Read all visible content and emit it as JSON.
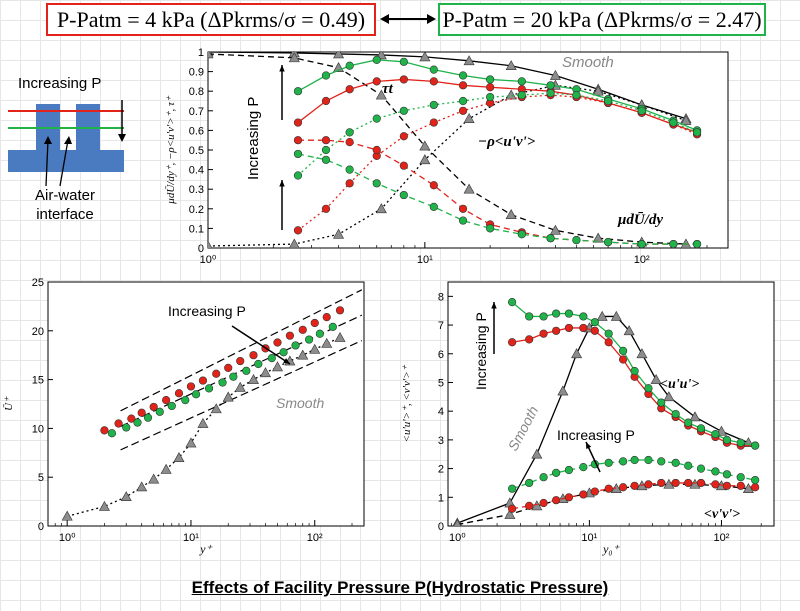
{
  "banners": {
    "left": {
      "label": "P-Patm = 4 kPa (ΔPkrms/σ = 0.49)",
      "color": "#e2231a"
    },
    "right": {
      "label": "P-Patm = 20 kPa (ΔPkrms/σ = 2.47)",
      "color": "#1fb34a"
    }
  },
  "inset": {
    "label_increasing": "Increasing P",
    "label_interface": "Air-water interface",
    "water_color": "#4a7abf"
  },
  "caption": "Effects of Facility Pressure P(Hydrostatic Pressure)",
  "chart_data": [
    {
      "id": "stress",
      "type": "line",
      "xscale": "log",
      "xlim": [
        1,
        250
      ],
      "ylim": [
        0,
        1
      ],
      "xticks": [
        1,
        10,
        100
      ],
      "xtick_labels": [
        "10⁰",
        "10¹",
        "10²"
      ],
      "yticks": [
        0,
        0.1,
        0.2,
        0.3,
        0.4,
        0.5,
        0.6,
        0.7,
        0.8,
        0.9,
        1
      ],
      "ylabel": "μdŪ/dy⁺, −ρ<u'v'>⁺, τ⁺",
      "annotations": [
        "Smooth",
        "τt",
        "−ρ<u'v'>",
        "μdŪ/dy",
        "Increasing P"
      ],
      "series": [
        {
          "name": "Smooth τt",
          "marker": "triangle",
          "color": "#8c8c8c",
          "dash": "solid",
          "x": [
            1,
            2.5,
            4,
            6.3,
            10,
            16,
            25,
            40,
            63,
            100,
            160
          ],
          "y": [
            1,
            0.995,
            0.99,
            0.985,
            0.975,
            0.955,
            0.93,
            0.88,
            0.81,
            0.73,
            0.66
          ]
        },
        {
          "name": "Smooth −ρ<u'v'>",
          "marker": "triangle",
          "color": "#8c8c8c",
          "dash": "dotted",
          "x": [
            1,
            2.5,
            4,
            6.3,
            10,
            16,
            25,
            40,
            63,
            100,
            160
          ],
          "y": [
            0.01,
            0.02,
            0.07,
            0.2,
            0.45,
            0.66,
            0.78,
            0.83,
            0.8,
            0.73,
            0.65
          ]
        },
        {
          "name": "Smooth μdU/dy",
          "marker": "triangle",
          "color": "#8c8c8c",
          "dash": "dashed",
          "x": [
            1,
            2.5,
            4,
            6.3,
            10,
            16,
            25,
            40,
            63,
            100,
            160
          ],
          "y": [
            0.99,
            0.97,
            0.92,
            0.78,
            0.52,
            0.3,
            0.17,
            0.09,
            0.05,
            0.03,
            0.02
          ]
        },
        {
          "name": "4 kPa τt",
          "marker": "circle",
          "color": "#e2231a",
          "dash": "solid",
          "x": [
            2.6,
            3.5,
            4.5,
            6,
            8,
            11,
            15,
            20,
            28,
            38,
            50,
            70,
            100,
            140,
            180
          ],
          "y": [
            0.64,
            0.75,
            0.81,
            0.85,
            0.86,
            0.85,
            0.83,
            0.82,
            0.81,
            0.8,
            0.78,
            0.74,
            0.69,
            0.63,
            0.59
          ]
        },
        {
          "name": "20 kPa τt",
          "marker": "circle",
          "color": "#1fb34a",
          "dash": "solid",
          "x": [
            2.6,
            3.5,
            4.5,
            6,
            8,
            11,
            15,
            20,
            28,
            38,
            50,
            70,
            100,
            140,
            180
          ],
          "y": [
            0.8,
            0.88,
            0.93,
            0.96,
            0.95,
            0.91,
            0.88,
            0.86,
            0.85,
            0.83,
            0.81,
            0.76,
            0.71,
            0.65,
            0.6
          ]
        },
        {
          "name": "4 kPa −ρ<u'v'>",
          "marker": "circle",
          "color": "#e2231a",
          "dash": "dotted",
          "x": [
            2.6,
            3.5,
            4.5,
            6,
            8,
            11,
            15,
            20,
            28,
            38,
            50,
            70,
            100,
            140,
            180
          ],
          "y": [
            0.09,
            0.2,
            0.33,
            0.47,
            0.57,
            0.64,
            0.7,
            0.74,
            0.77,
            0.78,
            0.77,
            0.74,
            0.69,
            0.63,
            0.58
          ]
        },
        {
          "name": "20 kPa −ρ<u'v'>",
          "marker": "circle",
          "color": "#1fb34a",
          "dash": "dotted",
          "x": [
            2.6,
            3.5,
            4.5,
            6,
            8,
            11,
            15,
            20,
            28,
            38,
            50,
            70,
            100,
            140,
            180
          ],
          "y": [
            0.37,
            0.5,
            0.59,
            0.66,
            0.7,
            0.73,
            0.75,
            0.77,
            0.78,
            0.79,
            0.78,
            0.75,
            0.7,
            0.64,
            0.59
          ]
        },
        {
          "name": "4 kPa μdU/dy",
          "marker": "circle",
          "color": "#e2231a",
          "dash": "dashed",
          "x": [
            2.6,
            3.5,
            4.5,
            6,
            8,
            11,
            15,
            20,
            28,
            38,
            50,
            70,
            100,
            140,
            180
          ],
          "y": [
            0.55,
            0.55,
            0.54,
            0.5,
            0.42,
            0.32,
            0.2,
            0.12,
            0.08,
            0.05,
            0.04,
            0.03,
            0.02,
            0.02,
            0.02
          ]
        },
        {
          "name": "20 kPa μdU/dy",
          "marker": "circle",
          "color": "#1fb34a",
          "dash": "dashed",
          "x": [
            2.6,
            3.5,
            4.5,
            6,
            8,
            11,
            15,
            20,
            28,
            38,
            50,
            70,
            100,
            140,
            180
          ],
          "y": [
            0.48,
            0.45,
            0.4,
            0.33,
            0.27,
            0.21,
            0.14,
            0.1,
            0.07,
            0.05,
            0.04,
            0.03,
            0.02,
            0.02,
            0.02
          ]
        }
      ]
    },
    {
      "id": "velocity",
      "type": "line",
      "xscale": "log",
      "xlim": [
        0.7,
        250
      ],
      "ylim": [
        0,
        25
      ],
      "xticks": [
        1,
        10,
        100
      ],
      "xtick_labels": [
        "10⁰",
        "10¹",
        "10²"
      ],
      "yticks": [
        0,
        5,
        10,
        15,
        20,
        25
      ],
      "xlabel": "y⁺",
      "ylabel": "Ū⁺",
      "annotations": [
        "Increasing P",
        "Smooth"
      ],
      "series": [
        {
          "name": "Smooth",
          "marker": "triangle",
          "color": "#8c8c8c",
          "dash": "dotted",
          "x": [
            1,
            2,
            3,
            4,
            5,
            6.3,
            8,
            10,
            12.5,
            16,
            20,
            25,
            32,
            40,
            50,
            63,
            80,
            100,
            125,
            160
          ],
          "y": [
            1,
            2,
            3,
            4,
            4.8,
            5.8,
            7,
            8.5,
            10.5,
            12,
            13.2,
            14.2,
            15,
            15.7,
            16.3,
            16.9,
            17.5,
            18.1,
            18.7,
            19.3
          ]
        },
        {
          "name": "4 kPa",
          "marker": "circle",
          "color": "#e2231a",
          "dash": "none",
          "x": [
            2,
            2.6,
            3.3,
            4,
            5,
            6.3,
            8,
            10,
            12.5,
            16,
            20,
            25,
            32,
            40,
            50,
            63,
            80,
            100,
            125,
            160
          ],
          "y": [
            9.8,
            10.5,
            11,
            11.6,
            12.2,
            12.9,
            13.6,
            14.3,
            14.9,
            15.6,
            16.2,
            16.9,
            17.5,
            18.2,
            18.8,
            19.5,
            20.1,
            20.8,
            21.4,
            22.1
          ]
        },
        {
          "name": "20 kPa",
          "marker": "circle",
          "color": "#1fb34a",
          "dash": "none",
          "x": [
            2.3,
            3,
            3.7,
            4.5,
            5.6,
            7,
            9,
            11,
            14,
            18,
            22,
            28,
            35,
            45,
            56,
            70,
            90,
            110,
            140
          ],
          "y": [
            9.5,
            10.1,
            10.6,
            11.1,
            11.7,
            12.3,
            12.9,
            13.5,
            14.1,
            14.7,
            15.3,
            15.9,
            16.6,
            17.2,
            17.8,
            18.5,
            19.1,
            19.7,
            20.4
          ]
        }
      ]
    },
    {
      "id": "normal-stress",
      "type": "line",
      "xscale": "log",
      "xlim": [
        0.85,
        250
      ],
      "ylim": [
        0,
        8.5
      ],
      "xticks": [
        1,
        10,
        100
      ],
      "xtick_labels": [
        "10⁰",
        "10¹",
        "10²"
      ],
      "yticks": [
        0,
        1,
        2,
        3,
        4,
        5,
        6,
        7,
        8
      ],
      "xlabel": "y₀⁺",
      "ylabel": "<u'u'>⁺, <v'v'>⁺",
      "annotations": [
        "Increasing P",
        "<u'u'>",
        "Increasing P",
        "<v'v'>",
        "Smooth"
      ],
      "series": [
        {
          "name": "Smooth <u'u'>",
          "marker": "triangle",
          "color": "#8c8c8c",
          "dash": "solid",
          "x": [
            1,
            2.5,
            4,
            6.3,
            8,
            10,
            12.5,
            16,
            20,
            25,
            32,
            40,
            63,
            100,
            160
          ],
          "y": [
            0.1,
            0.8,
            2.5,
            4.7,
            6,
            6.9,
            7.3,
            7.3,
            6.8,
            6,
            5.1,
            4.5,
            3.8,
            3.3,
            2.9
          ]
        },
        {
          "name": "Smooth <v'v'>",
          "marker": "triangle",
          "color": "#8c8c8c",
          "dash": "dashed",
          "x": [
            1,
            2.5,
            4,
            6.3,
            10,
            16,
            25,
            40,
            63,
            100,
            160
          ],
          "y": [
            0.05,
            0.4,
            0.7,
            0.95,
            1.15,
            1.3,
            1.4,
            1.45,
            1.45,
            1.4,
            1.3
          ]
        },
        {
          "name": "4 kPa <u'u'>",
          "marker": "circle",
          "color": "#e2231a",
          "dash": "solid",
          "x": [
            2.6,
            3.5,
            4.5,
            5.6,
            7,
            9,
            11,
            14,
            18,
            22,
            28,
            35,
            45,
            56,
            70,
            90,
            110,
            140,
            180
          ],
          "y": [
            6.4,
            6.5,
            6.7,
            6.8,
            6.9,
            6.9,
            6.8,
            6.4,
            5.8,
            5.2,
            4.6,
            4.1,
            3.8,
            3.5,
            3.3,
            3.1,
            2.9,
            2.8,
            2.8
          ]
        },
        {
          "name": "20 kPa <u'u'>",
          "marker": "circle",
          "color": "#1fb34a",
          "dash": "solid",
          "x": [
            2.6,
            3.5,
            4.5,
            5.6,
            7,
            9,
            11,
            14,
            18,
            22,
            28,
            35,
            45,
            56,
            70,
            90,
            110,
            140,
            180
          ],
          "y": [
            7.8,
            7.3,
            7.3,
            7.4,
            7.4,
            7.3,
            7.1,
            6.7,
            6.1,
            5.4,
            4.8,
            4.3,
            3.9,
            3.6,
            3.4,
            3.2,
            3,
            2.9,
            2.8
          ]
        },
        {
          "name": "4 kPa <v'v'>",
          "marker": "circle",
          "color": "#e2231a",
          "dash": "dashed",
          "x": [
            2.6,
            3.5,
            4.5,
            5.6,
            7,
            9,
            11,
            14,
            18,
            22,
            28,
            35,
            45,
            56,
            70,
            90,
            110,
            140,
            180
          ],
          "y": [
            0.6,
            0.7,
            0.8,
            0.9,
            1,
            1.1,
            1.2,
            1.3,
            1.35,
            1.4,
            1.45,
            1.5,
            1.5,
            1.5,
            1.5,
            1.45,
            1.4,
            1.4,
            1.35
          ]
        },
        {
          "name": "20 kPa <v'v'>",
          "marker": "circle",
          "color": "#1fb34a",
          "dash": "dashed",
          "x": [
            2.6,
            3.5,
            4.5,
            5.6,
            7,
            9,
            11,
            14,
            18,
            22,
            28,
            35,
            45,
            56,
            70,
            90,
            110,
            140,
            180
          ],
          "y": [
            1.3,
            1.5,
            1.7,
            1.85,
            1.95,
            2.05,
            2.15,
            2.2,
            2.25,
            2.3,
            2.3,
            2.25,
            2.2,
            2.1,
            2,
            1.9,
            1.8,
            1.7,
            1.6
          ]
        }
      ]
    }
  ]
}
